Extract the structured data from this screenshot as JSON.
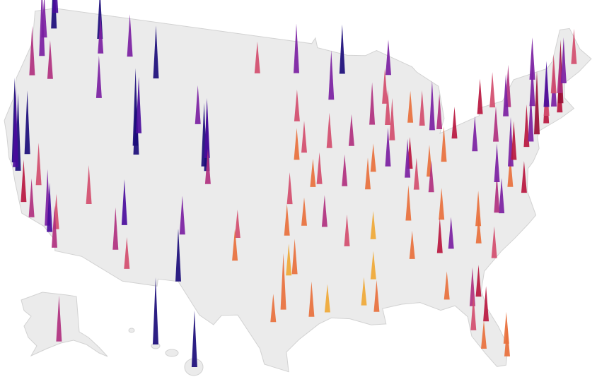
{
  "map_data": {
    "type": "spike-map",
    "spikes": [
      {
        "lon": -122.3,
        "lat": 47.6,
        "height": 95,
        "color": "#1b0c7a"
      },
      {
        "lon": -122.6,
        "lat": 48.7,
        "height": 70,
        "color": "#4a0c9c"
      },
      {
        "lon": -123.0,
        "lat": 46.8,
        "height": 60,
        "color": "#7b1fa2"
      },
      {
        "lon": -122.7,
        "lat": 45.5,
        "height": 100,
        "color": "#7b1fa2"
      },
      {
        "lon": -123.1,
        "lat": 44.0,
        "height": 70,
        "color": "#b0307f"
      },
      {
        "lon": -117.4,
        "lat": 47.7,
        "height": 70,
        "color": "#1b0c7a"
      },
      {
        "lon": -117.0,
        "lat": 46.7,
        "height": 55,
        "color": "#7b1fa2"
      },
      {
        "lon": -114.0,
        "lat": 46.9,
        "height": 60,
        "color": "#7b1fa2"
      },
      {
        "lon": -111.0,
        "lat": 45.7,
        "height": 75,
        "color": "#1b0c7a"
      },
      {
        "lon": -116.2,
        "lat": 43.6,
        "height": 60,
        "color": "#7b1fa2"
      },
      {
        "lon": -121.3,
        "lat": 44.1,
        "height": 55,
        "color": "#b0307f"
      },
      {
        "lon": -122.4,
        "lat": 37.8,
        "height": 120,
        "color": "#1b0c7a"
      },
      {
        "lon": -121.9,
        "lat": 37.3,
        "height": 110,
        "color": "#1b0c7a"
      },
      {
        "lon": -122.2,
        "lat": 37.5,
        "height": 115,
        "color": "#4a0c9c"
      },
      {
        "lon": -121.5,
        "lat": 38.6,
        "height": 90,
        "color": "#1b0c7a"
      },
      {
        "lon": -120.7,
        "lat": 35.3,
        "height": 60,
        "color": "#b8173f"
      },
      {
        "lon": -119.8,
        "lat": 36.7,
        "height": 60,
        "color": "#d24d6e"
      },
      {
        "lon": -119.7,
        "lat": 34.4,
        "height": 55,
        "color": "#b0307f"
      },
      {
        "lon": -118.2,
        "lat": 34.1,
        "height": 80,
        "color": "#7b1fa2"
      },
      {
        "lon": -117.9,
        "lat": 33.7,
        "height": 70,
        "color": "#4a0c9c"
      },
      {
        "lon": -117.4,
        "lat": 34.0,
        "height": 50,
        "color": "#d24d6e"
      },
      {
        "lon": -117.2,
        "lat": 32.7,
        "height": 60,
        "color": "#b0307f"
      },
      {
        "lon": -115.1,
        "lat": 36.2,
        "height": 55,
        "color": "#d24d6e"
      },
      {
        "lon": -112.1,
        "lat": 33.4,
        "height": 60,
        "color": "#b0307f"
      },
      {
        "lon": -110.9,
        "lat": 32.2,
        "height": 45,
        "color": "#d24d6e"
      },
      {
        "lon": -111.7,
        "lat": 35.2,
        "height": 65,
        "color": "#4a0c9c"
      },
      {
        "lon": -111.9,
        "lat": 40.8,
        "height": 110,
        "color": "#1b0c7a"
      },
      {
        "lon": -111.7,
        "lat": 40.2,
        "height": 90,
        "color": "#1b0c7a"
      },
      {
        "lon": -111.8,
        "lat": 41.7,
        "height": 80,
        "color": "#4a0c9c"
      },
      {
        "lon": -106.3,
        "lat": 42.9,
        "height": 55,
        "color": "#7b1fa2"
      },
      {
        "lon": -105.0,
        "lat": 39.7,
        "height": 100,
        "color": "#1b0c7a"
      },
      {
        "lon": -105.3,
        "lat": 40.0,
        "height": 90,
        "color": "#1b0c7a"
      },
      {
        "lon": -105.1,
        "lat": 40.6,
        "height": 85,
        "color": "#4a0c9c"
      },
      {
        "lon": -104.8,
        "lat": 38.8,
        "height": 50,
        "color": "#b0307f"
      },
      {
        "lon": -106.6,
        "lat": 35.1,
        "height": 55,
        "color": "#7b1fa2"
      },
      {
        "lon": -106.5,
        "lat": 31.8,
        "height": 75,
        "color": "#1b0c7a"
      },
      {
        "lon": -101.8,
        "lat": 35.2,
        "height": 40,
        "color": "#d24d6e"
      },
      {
        "lon": -101.9,
        "lat": 33.6,
        "height": 45,
        "color": "#e8703c"
      },
      {
        "lon": -100.8,
        "lat": 46.8,
        "height": 45,
        "color": "#d24d6e"
      },
      {
        "lon": -96.8,
        "lat": 46.9,
        "height": 70,
        "color": "#7b1fa2"
      },
      {
        "lon": -96.7,
        "lat": 43.5,
        "height": 45,
        "color": "#d24d6e"
      },
      {
        "lon": -93.3,
        "lat": 45.0,
        "height": 70,
        "color": "#7b1fa2"
      },
      {
        "lon": -92.1,
        "lat": 46.8,
        "height": 70,
        "color": "#1b0c7a"
      },
      {
        "lon": -96.0,
        "lat": 41.3,
        "height": 45,
        "color": "#d24d6e"
      },
      {
        "lon": -96.7,
        "lat": 40.8,
        "height": 45,
        "color": "#e8703c"
      },
      {
        "lon": -93.6,
        "lat": 41.6,
        "height": 50,
        "color": "#d24d6e"
      },
      {
        "lon": -91.5,
        "lat": 41.7,
        "height": 45,
        "color": "#b0307f"
      },
      {
        "lon": -94.6,
        "lat": 39.1,
        "height": 45,
        "color": "#d24d6e"
      },
      {
        "lon": -95.2,
        "lat": 38.9,
        "height": 40,
        "color": "#e8703c"
      },
      {
        "lon": -97.3,
        "lat": 37.7,
        "height": 45,
        "color": "#d24d6e"
      },
      {
        "lon": -97.5,
        "lat": 35.5,
        "height": 45,
        "color": "#e8703c"
      },
      {
        "lon": -96.0,
        "lat": 36.2,
        "height": 40,
        "color": "#e8703c"
      },
      {
        "lon": -96.8,
        "lat": 32.8,
        "height": 50,
        "color": "#e8703c"
      },
      {
        "lon": -97.3,
        "lat": 32.7,
        "height": 45,
        "color": "#efa836"
      },
      {
        "lon": -97.7,
        "lat": 30.3,
        "height": 80,
        "color": "#e8703c"
      },
      {
        "lon": -98.5,
        "lat": 29.4,
        "height": 40,
        "color": "#e8703c"
      },
      {
        "lon": -95.4,
        "lat": 29.8,
        "height": 50,
        "color": "#e8703c"
      },
      {
        "lon": -94.1,
        "lat": 30.1,
        "height": 40,
        "color": "#efa836"
      },
      {
        "lon": -92.3,
        "lat": 34.7,
        "height": 45,
        "color": "#d24d6e"
      },
      {
        "lon": -94.2,
        "lat": 36.1,
        "height": 45,
        "color": "#b0307f"
      },
      {
        "lon": -90.2,
        "lat": 38.6,
        "height": 45,
        "color": "#e8703c"
      },
      {
        "lon": -92.3,
        "lat": 38.9,
        "height": 45,
        "color": "#b0307f"
      },
      {
        "lon": -90.0,
        "lat": 35.1,
        "height": 40,
        "color": "#efa836"
      },
      {
        "lon": -90.2,
        "lat": 32.3,
        "height": 40,
        "color": "#efa836"
      },
      {
        "lon": -90.1,
        "lat": 30.0,
        "height": 45,
        "color": "#e8703c"
      },
      {
        "lon": -91.1,
        "lat": 30.5,
        "height": 40,
        "color": "#efa836"
      },
      {
        "lon": -89.4,
        "lat": 43.1,
        "height": 60,
        "color": "#b0307f"
      },
      {
        "lon": -87.9,
        "lat": 43.0,
        "height": 50,
        "color": "#d24d6e"
      },
      {
        "lon": -88.0,
        "lat": 44.5,
        "height": 50,
        "color": "#d24d6e"
      },
      {
        "lon": -87.4,
        "lat": 46.5,
        "height": 50,
        "color": "#7b1fa2"
      },
      {
        "lon": -87.6,
        "lat": 41.9,
        "height": 60,
        "color": "#d24d6e"
      },
      {
        "lon": -88.2,
        "lat": 40.1,
        "height": 55,
        "color": "#7b1fa2"
      },
      {
        "lon": -89.6,
        "lat": 39.8,
        "height": 40,
        "color": "#e8703c"
      },
      {
        "lon": -86.2,
        "lat": 39.8,
        "height": 45,
        "color": "#b8173f"
      },
      {
        "lon": -86.5,
        "lat": 39.2,
        "height": 55,
        "color": "#7b1fa2"
      },
      {
        "lon": -85.7,
        "lat": 43.0,
        "height": 45,
        "color": "#e8703c"
      },
      {
        "lon": -84.6,
        "lat": 42.7,
        "height": 50,
        "color": "#d24d6e"
      },
      {
        "lon": -83.7,
        "lat": 42.3,
        "height": 70,
        "color": "#7b1fa2"
      },
      {
        "lon": -83.0,
        "lat": 42.3,
        "height": 50,
        "color": "#b0307f"
      },
      {
        "lon": -83.0,
        "lat": 40.0,
        "height": 50,
        "color": "#e8703c"
      },
      {
        "lon": -84.5,
        "lat": 39.1,
        "height": 45,
        "color": "#e8703c"
      },
      {
        "lon": -81.7,
        "lat": 41.5,
        "height": 45,
        "color": "#b8173f"
      },
      {
        "lon": -80.0,
        "lat": 40.4,
        "height": 50,
        "color": "#7b1fa2"
      },
      {
        "lon": -85.8,
        "lat": 38.3,
        "height": 45,
        "color": "#d24d6e"
      },
      {
        "lon": -84.5,
        "lat": 38.0,
        "height": 45,
        "color": "#b0307f"
      },
      {
        "lon": -86.8,
        "lat": 36.2,
        "height": 50,
        "color": "#e8703c"
      },
      {
        "lon": -83.9,
        "lat": 36.0,
        "height": 45,
        "color": "#e8703c"
      },
      {
        "lon": -86.8,
        "lat": 33.5,
        "height": 40,
        "color": "#e8703c"
      },
      {
        "lon": -84.4,
        "lat": 33.7,
        "height": 50,
        "color": "#b8173f"
      },
      {
        "lon": -83.4,
        "lat": 33.9,
        "height": 45,
        "color": "#7b1fa2"
      },
      {
        "lon": -84.3,
        "lat": 30.4,
        "height": 40,
        "color": "#e8703c"
      },
      {
        "lon": -81.0,
        "lat": 34.0,
        "height": 40,
        "color": "#e8703c"
      },
      {
        "lon": -79.9,
        "lat": 32.8,
        "height": 45,
        "color": "#d24d6e"
      },
      {
        "lon": -80.8,
        "lat": 35.2,
        "height": 50,
        "color": "#e8703c"
      },
      {
        "lon": -78.6,
        "lat": 35.8,
        "height": 50,
        "color": "#7b1fa2"
      },
      {
        "lon": -79.0,
        "lat": 35.9,
        "height": 55,
        "color": "#b0307f"
      },
      {
        "lon": -77.4,
        "lat": 37.5,
        "height": 45,
        "color": "#e8703c"
      },
      {
        "lon": -76.3,
        "lat": 36.9,
        "height": 45,
        "color": "#b8173f"
      },
      {
        "lon": -78.5,
        "lat": 38.0,
        "height": 55,
        "color": "#7b1fa2"
      },
      {
        "lon": -77.0,
        "lat": 38.9,
        "height": 70,
        "color": "#7b1fa2"
      },
      {
        "lon": -76.6,
        "lat": 39.3,
        "height": 55,
        "color": "#b8173f"
      },
      {
        "lon": -75.2,
        "lat": 40.0,
        "height": 60,
        "color": "#b8173f"
      },
      {
        "lon": -77.9,
        "lat": 40.8,
        "height": 50,
        "color": "#b0307f"
      },
      {
        "lon": -74.0,
        "lat": 40.7,
        "height": 90,
        "color": "#9a0f35"
      },
      {
        "lon": -74.7,
        "lat": 40.3,
        "height": 70,
        "color": "#7b1fa2"
      },
      {
        "lon": -72.9,
        "lat": 41.3,
        "height": 65,
        "color": "#b8173f"
      },
      {
        "lon": -72.7,
        "lat": 41.8,
        "height": 55,
        "color": "#d24d6e"
      },
      {
        "lon": -71.4,
        "lat": 41.8,
        "height": 60,
        "color": "#b8173f"
      },
      {
        "lon": -71.1,
        "lat": 42.4,
        "height": 90,
        "color": "#9a0f35"
      },
      {
        "lon": -71.8,
        "lat": 42.3,
        "height": 60,
        "color": "#7b1fa2"
      },
      {
        "lon": -72.5,
        "lat": 42.4,
        "height": 65,
        "color": "#4a0c9c"
      },
      {
        "lon": -73.8,
        "lat": 42.7,
        "height": 60,
        "color": "#7b1fa2"
      },
      {
        "lon": -76.1,
        "lat": 43.0,
        "height": 60,
        "color": "#b0307f"
      },
      {
        "lon": -76.5,
        "lat": 42.4,
        "height": 60,
        "color": "#7b1fa2"
      },
      {
        "lon": -77.6,
        "lat": 43.2,
        "height": 50,
        "color": "#d24d6e"
      },
      {
        "lon": -78.9,
        "lat": 42.9,
        "height": 50,
        "color": "#b8173f"
      },
      {
        "lon": -73.2,
        "lat": 44.5,
        "height": 60,
        "color": "#7b1fa2"
      },
      {
        "lon": -71.5,
        "lat": 43.2,
        "height": 55,
        "color": "#d24d6e"
      },
      {
        "lon": -70.9,
        "lat": 43.1,
        "height": 60,
        "color": "#b0307f"
      },
      {
        "lon": -70.3,
        "lat": 43.7,
        "height": 65,
        "color": "#7b1fa2"
      },
      {
        "lon": -68.8,
        "lat": 44.8,
        "height": 50,
        "color": "#d24d6e"
      },
      {
        "lon": -81.7,
        "lat": 30.3,
        "height": 45,
        "color": "#b8173f"
      },
      {
        "lon": -82.3,
        "lat": 29.7,
        "height": 55,
        "color": "#b0307f"
      },
      {
        "lon": -81.4,
        "lat": 28.5,
        "height": 50,
        "color": "#b8173f"
      },
      {
        "lon": -82.5,
        "lat": 28.0,
        "height": 50,
        "color": "#d24d6e"
      },
      {
        "lon": -81.9,
        "lat": 26.6,
        "height": 40,
        "color": "#e8703c"
      },
      {
        "lon": -80.1,
        "lat": 26.7,
        "height": 45,
        "color": "#e8703c"
      },
      {
        "lon": -80.2,
        "lat": 25.8,
        "height": 45,
        "color": "#e8703c"
      }
    ],
    "alaska_spikes": [
      {
        "lon": -149.9,
        "lat": 61.2,
        "height": 65,
        "color": "#b0307f"
      }
    ],
    "hawaii_spikes": [
      {
        "lon": -157.9,
        "lat": 21.3,
        "height": 95,
        "color": "#1b0c7a"
      },
      {
        "lon": -155.1,
        "lat": 19.7,
        "height": 80,
        "color": "#1b0c7a"
      }
    ]
  }
}
